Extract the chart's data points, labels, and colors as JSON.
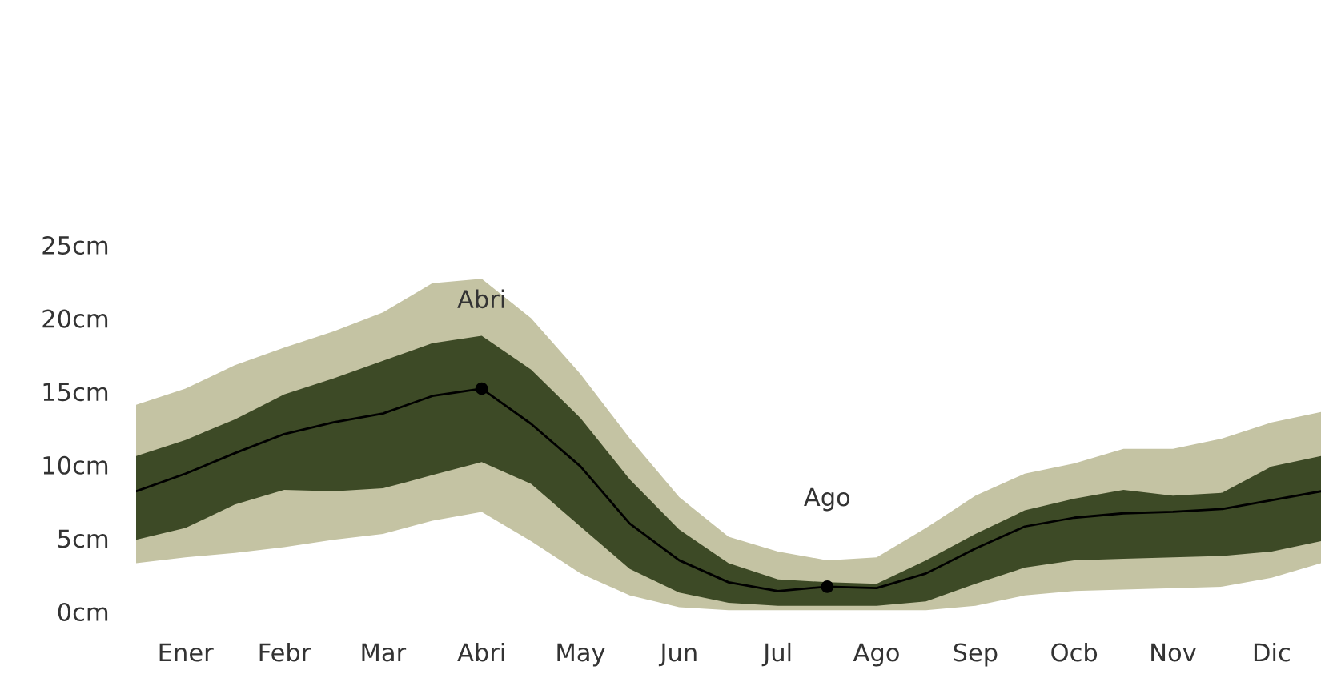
{
  "chart_data": {
    "type": "line",
    "categories": [
      null,
      "Ener",
      null,
      "Febr",
      null,
      "Mar",
      null,
      "Abri",
      null,
      "May",
      null,
      "Jun",
      null,
      "Jul",
      null,
      "Ago",
      null,
      "Sep",
      null,
      "Ocb",
      null,
      "Nov",
      null,
      "Dic",
      null
    ],
    "ylim": [
      0,
      25
    ],
    "yticks": [
      {
        "value": 0,
        "label": "0cm"
      },
      {
        "value": 5,
        "label": "5cm"
      },
      {
        "value": 10,
        "label": "10cm"
      },
      {
        "value": 15,
        "label": "15cm"
      },
      {
        "value": 20,
        "label": "20cm"
      },
      {
        "value": 25,
        "label": "25cm"
      }
    ],
    "grid": false,
    "legend": false,
    "marker": "none",
    "line_style": "solid",
    "series": [
      {
        "color": "#c4c3a3",
        "values": [
          null,
          null,
          null,
          null,
          null,
          null,
          null,
          null,
          null,
          null,
          null,
          null,
          null,
          null,
          null,
          null,
          null,
          null,
          null,
          null,
          null,
          null,
          null,
          null,
          null
        ],
        "lower": [
          3.3,
          3.7,
          4.0,
          4.4,
          4.9,
          5.3,
          6.2,
          6.8,
          4.8,
          2.6,
          1.1,
          0.3,
          0.1,
          0.1,
          0.1,
          0.1,
          0.1,
          0.4,
          1.1,
          1.4,
          1.5,
          1.6,
          1.7,
          2.3,
          3.3
        ],
        "upper": [
          14.1,
          15.2,
          16.8,
          18.0,
          19.1,
          20.4,
          22.4,
          22.7,
          20.0,
          16.2,
          11.8,
          7.8,
          5.1,
          4.1,
          3.5,
          3.7,
          5.7,
          7.9,
          9.4,
          10.1,
          11.1,
          11.1,
          11.8,
          12.9,
          13.6
        ]
      },
      {
        "color": "#3d4a26",
        "values": [
          null,
          null,
          null,
          null,
          null,
          null,
          null,
          null,
          null,
          null,
          null,
          null,
          null,
          null,
          null,
          null,
          null,
          null,
          null,
          null,
          null,
          null,
          null,
          null,
          null
        ],
        "lower": [
          4.9,
          5.7,
          7.3,
          8.3,
          8.2,
          8.4,
          9.3,
          10.2,
          8.7,
          5.8,
          2.9,
          1.3,
          0.6,
          0.4,
          0.4,
          0.4,
          0.7,
          1.9,
          3.0,
          3.5,
          3.6,
          3.7,
          3.8,
          4.1,
          4.8
        ],
        "upper": [
          10.6,
          11.7,
          13.1,
          14.8,
          15.9,
          17.1,
          18.3,
          18.8,
          16.5,
          13.2,
          9.0,
          5.6,
          3.3,
          2.2,
          2.0,
          1.9,
          3.5,
          5.3,
          6.9,
          7.7,
          8.3,
          7.9,
          8.1,
          9.9,
          10.6
        ]
      },
      {
        "color": "#000000",
        "values": [
          8.2,
          9.4,
          10.8,
          12.1,
          12.9,
          13.5,
          14.7,
          15.2,
          12.8,
          9.9,
          6.0,
          3.5,
          2.0,
          1.4,
          1.7,
          1.6,
          2.6,
          4.3,
          5.8,
          6.4,
          6.7,
          6.8,
          7.0,
          7.6,
          8.2
        ]
      },
      {
        "type": "scatter",
        "color": "#000000",
        "marker": "circle",
        "values": [
          null,
          null,
          null,
          null,
          null,
          null,
          null,
          15.2,
          null,
          null,
          null,
          null,
          null,
          null,
          1.7,
          null,
          null,
          null,
          null,
          null,
          null,
          null,
          null,
          null,
          null
        ]
      }
    ],
    "annotations": [
      "Abri",
      "Ago"
    ]
  }
}
